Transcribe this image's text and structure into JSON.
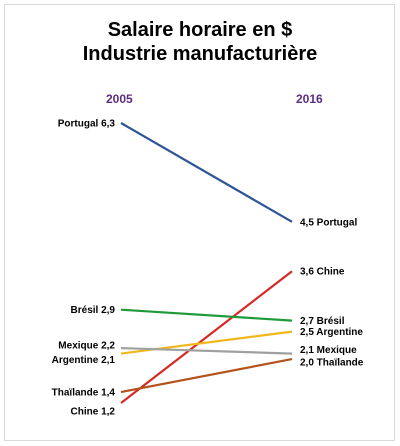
{
  "chart_data": {
    "type": "line",
    "title_line1": "Salaire horaire en $",
    "title_line2": "Industrie manufacturière",
    "x": [
      "2005",
      "2016"
    ],
    "series": [
      {
        "name": "Portugal",
        "values": [
          6.3,
          4.5
        ],
        "color": "#2e5597",
        "label_start": "Portugal 6,3",
        "label_end": "4,5 Portugal"
      },
      {
        "name": "Chine",
        "values": [
          1.2,
          3.6
        ],
        "color": "#d42a24",
        "label_start": "Chine 1,2",
        "label_end": "3,6 Chine"
      },
      {
        "name": "Brésil",
        "values": [
          2.9,
          2.7
        ],
        "color": "#1f9a3a",
        "label_start": "Brésil 2,9",
        "label_end": "2,7 Brésil"
      },
      {
        "name": "Argentine",
        "values": [
          2.1,
          2.5
        ],
        "color": "#f0b71b",
        "label_start": "Argentine 2,1",
        "label_end": "2,5 Argentine"
      },
      {
        "name": "Mexique",
        "values": [
          2.2,
          2.1
        ],
        "color": "#a0a0a0",
        "label_start": "Mexique 2,2",
        "label_end": "2,1 Mexique"
      },
      {
        "name": "Thaïlande",
        "values": [
          1.4,
          2.0
        ],
        "color": "#b3531d",
        "label_start": "Thaïlande 1,4",
        "label_end": "2,0 Thaïlande"
      }
    ],
    "ylim": [
      1.2,
      6.3
    ],
    "grid": false,
    "legend": "none"
  }
}
